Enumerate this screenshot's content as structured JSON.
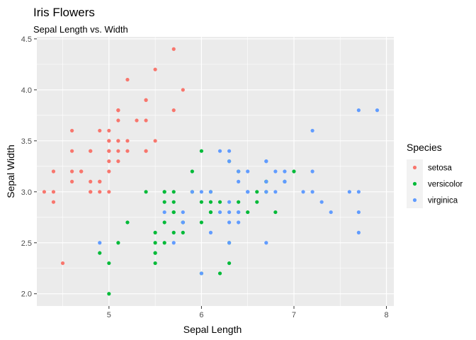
{
  "chart_data": {
    "type": "scatter",
    "title": "Iris Flowers",
    "subtitle": "Sepal Length vs. Width",
    "xlabel": "Sepal Length",
    "ylabel": "Sepal Width",
    "xlim": [
      4.22,
      8.08
    ],
    "ylim": [
      1.88,
      4.52
    ],
    "x_ticks": [
      5,
      6,
      7,
      8
    ],
    "y_ticks": [
      2.0,
      2.5,
      3.0,
      3.5,
      4.0,
      4.5
    ],
    "x_tick_labels": [
      "5",
      "6",
      "7",
      "8"
    ],
    "y_tick_labels": [
      "2.0",
      "2.5",
      "3.0",
      "3.5",
      "4.0",
      "4.5"
    ],
    "grid": true,
    "legend": {
      "title": "Species",
      "position": "right"
    },
    "series": [
      {
        "name": "setosa",
        "color": "#F8766D",
        "points": [
          [
            5.1,
            3.5
          ],
          [
            4.9,
            3.0
          ],
          [
            4.7,
            3.2
          ],
          [
            4.6,
            3.1
          ],
          [
            5.0,
            3.6
          ],
          [
            5.4,
            3.9
          ],
          [
            4.6,
            3.4
          ],
          [
            5.0,
            3.4
          ],
          [
            4.4,
            2.9
          ],
          [
            4.9,
            3.1
          ],
          [
            5.4,
            3.7
          ],
          [
            4.8,
            3.4
          ],
          [
            4.8,
            3.0
          ],
          [
            4.3,
            3.0
          ],
          [
            5.8,
            4.0
          ],
          [
            5.7,
            4.4
          ],
          [
            5.4,
            3.9
          ],
          [
            5.1,
            3.5
          ],
          [
            5.7,
            3.8
          ],
          [
            5.1,
            3.8
          ],
          [
            5.4,
            3.4
          ],
          [
            5.1,
            3.7
          ],
          [
            4.6,
            3.6
          ],
          [
            5.1,
            3.3
          ],
          [
            4.8,
            3.4
          ],
          [
            5.0,
            3.0
          ],
          [
            5.0,
            3.4
          ],
          [
            5.2,
            3.5
          ],
          [
            5.2,
            3.4
          ],
          [
            4.7,
            3.2
          ],
          [
            4.8,
            3.1
          ],
          [
            5.4,
            3.4
          ],
          [
            5.2,
            4.1
          ],
          [
            5.5,
            4.2
          ],
          [
            4.9,
            3.1
          ],
          [
            5.0,
            3.2
          ],
          [
            5.5,
            3.5
          ],
          [
            4.9,
            3.6
          ],
          [
            4.4,
            3.0
          ],
          [
            5.1,
            3.4
          ],
          [
            5.0,
            3.5
          ],
          [
            4.5,
            2.3
          ],
          [
            4.4,
            3.2
          ],
          [
            5.0,
            3.5
          ],
          [
            5.1,
            3.8
          ],
          [
            4.8,
            3.0
          ],
          [
            5.1,
            3.8
          ],
          [
            4.6,
            3.2
          ],
          [
            5.3,
            3.7
          ],
          [
            5.0,
            3.3
          ]
        ]
      },
      {
        "name": "versicolor",
        "color": "#00BA38",
        "points": [
          [
            7.0,
            3.2
          ],
          [
            6.4,
            3.2
          ],
          [
            6.9,
            3.1
          ],
          [
            5.5,
            2.3
          ],
          [
            6.5,
            2.8
          ],
          [
            5.7,
            2.8
          ],
          [
            6.3,
            3.3
          ],
          [
            4.9,
            2.4
          ],
          [
            6.6,
            2.9
          ],
          [
            5.2,
            2.7
          ],
          [
            5.0,
            2.0
          ],
          [
            5.9,
            3.0
          ],
          [
            6.0,
            2.2
          ],
          [
            6.1,
            2.9
          ],
          [
            5.6,
            2.9
          ],
          [
            6.7,
            3.1
          ],
          [
            5.6,
            3.0
          ],
          [
            5.8,
            2.7
          ],
          [
            6.2,
            2.2
          ],
          [
            5.6,
            2.5
          ],
          [
            5.9,
            3.2
          ],
          [
            6.1,
            2.8
          ],
          [
            6.3,
            2.5
          ],
          [
            6.1,
            2.8
          ],
          [
            6.4,
            2.9
          ],
          [
            6.6,
            3.0
          ],
          [
            6.8,
            2.8
          ],
          [
            6.7,
            3.0
          ],
          [
            6.0,
            2.9
          ],
          [
            5.7,
            2.6
          ],
          [
            5.5,
            2.4
          ],
          [
            5.5,
            2.4
          ],
          [
            5.8,
            2.7
          ],
          [
            6.0,
            2.7
          ],
          [
            5.4,
            3.0
          ],
          [
            6.0,
            3.4
          ],
          [
            6.7,
            3.1
          ],
          [
            6.3,
            2.3
          ],
          [
            5.6,
            3.0
          ],
          [
            5.5,
            2.5
          ],
          [
            5.5,
            2.6
          ],
          [
            6.1,
            3.0
          ],
          [
            5.8,
            2.6
          ],
          [
            5.0,
            2.3
          ],
          [
            5.6,
            2.7
          ],
          [
            5.7,
            3.0
          ],
          [
            5.7,
            2.9
          ],
          [
            6.2,
            2.9
          ],
          [
            5.1,
            2.5
          ],
          [
            5.7,
            2.8
          ]
        ]
      },
      {
        "name": "virginica",
        "color": "#619CFF",
        "points": [
          [
            6.3,
            3.3
          ],
          [
            5.8,
            2.7
          ],
          [
            7.1,
            3.0
          ],
          [
            6.3,
            2.9
          ],
          [
            6.5,
            3.0
          ],
          [
            7.6,
            3.0
          ],
          [
            4.9,
            2.5
          ],
          [
            7.3,
            2.9
          ],
          [
            6.7,
            2.5
          ],
          [
            7.2,
            3.6
          ],
          [
            6.5,
            3.2
          ],
          [
            6.4,
            2.7
          ],
          [
            6.8,
            3.0
          ],
          [
            5.7,
            2.5
          ],
          [
            5.8,
            2.8
          ],
          [
            6.4,
            3.2
          ],
          [
            6.5,
            3.0
          ],
          [
            7.7,
            3.8
          ],
          [
            7.7,
            2.6
          ],
          [
            6.0,
            2.2
          ],
          [
            6.9,
            3.2
          ],
          [
            5.6,
            2.8
          ],
          [
            7.7,
            2.8
          ],
          [
            6.3,
            2.7
          ],
          [
            6.7,
            3.3
          ],
          [
            7.2,
            3.2
          ],
          [
            6.2,
            2.8
          ],
          [
            6.1,
            3.0
          ],
          [
            6.4,
            2.8
          ],
          [
            7.2,
            3.0
          ],
          [
            7.4,
            2.8
          ],
          [
            7.9,
            3.8
          ],
          [
            6.4,
            2.8
          ],
          [
            6.3,
            2.8
          ],
          [
            6.1,
            2.6
          ],
          [
            7.7,
            3.0
          ],
          [
            6.3,
            3.4
          ],
          [
            6.4,
            3.1
          ],
          [
            6.0,
            3.0
          ],
          [
            6.9,
            3.1
          ],
          [
            6.7,
            3.1
          ],
          [
            6.9,
            3.1
          ],
          [
            5.8,
            2.7
          ],
          [
            6.8,
            3.2
          ],
          [
            6.7,
            3.3
          ],
          [
            6.7,
            3.0
          ],
          [
            6.3,
            2.5
          ],
          [
            6.5,
            3.0
          ],
          [
            6.2,
            3.4
          ],
          [
            5.9,
            3.0
          ]
        ]
      }
    ]
  }
}
